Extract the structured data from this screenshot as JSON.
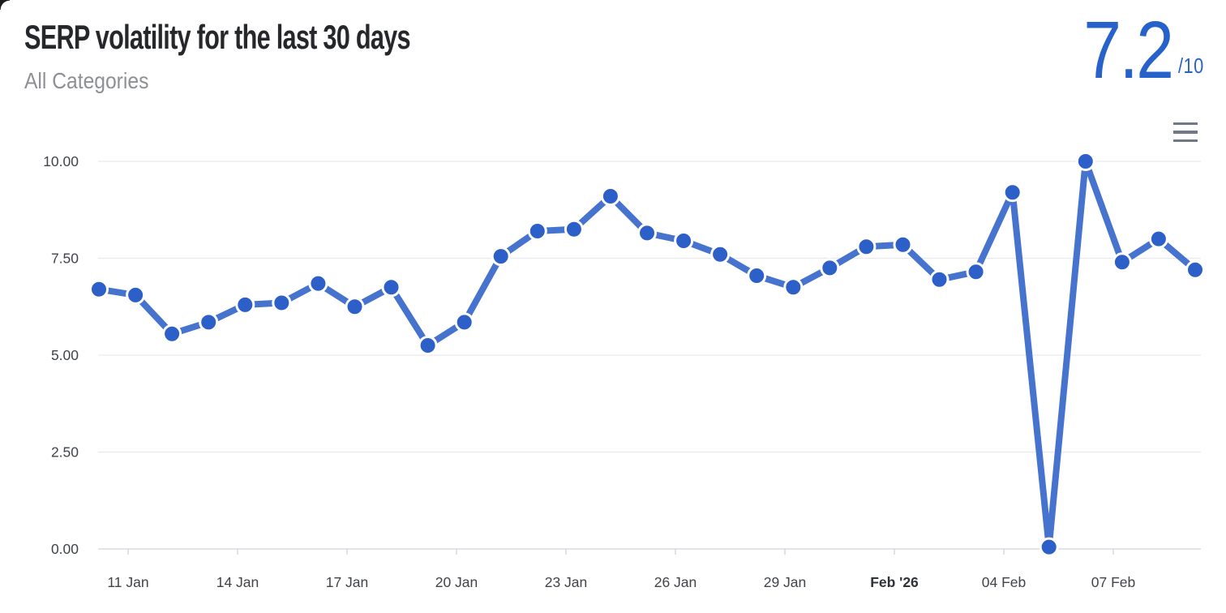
{
  "header": {
    "title": "SERP volatility for the last 30 days",
    "subtitle": "All Categories",
    "score_value": "7.2",
    "score_max": "/10"
  },
  "colors": {
    "score": "#2762ca",
    "title": "#26272a",
    "subtitle": "#8e9095",
    "line": "#4573cd",
    "marker": "#2c5fc8",
    "marker_border": "#ffffff",
    "grid": "#e8e9ec",
    "axis_line": "#d8dbdf",
    "tick_mark": "#ccd1d8",
    "axis_label": "#40444a",
    "axis_label_bold": "#2f3338",
    "menu_icon": "#6e7887"
  },
  "chart_data": {
    "type": "line",
    "title": "SERP volatility for the last 30 days",
    "subtitle": "All Categories",
    "current_score": 7.2,
    "score_scale_max": 10,
    "x": [
      "10 Jan",
      "11 Jan",
      "12 Jan",
      "13 Jan",
      "14 Jan",
      "15 Jan",
      "16 Jan",
      "17 Jan",
      "18 Jan",
      "19 Jan",
      "20 Jan",
      "21 Jan",
      "22 Jan",
      "23 Jan",
      "24 Jan",
      "25 Jan",
      "26 Jan",
      "27 Jan",
      "28 Jan",
      "29 Jan",
      "30 Jan",
      "31 Jan",
      "01 Feb",
      "02 Feb",
      "03 Feb",
      "04 Feb",
      "05 Feb",
      "06 Feb",
      "07 Feb",
      "08 Feb",
      "09 Feb"
    ],
    "values": [
      6.7,
      6.55,
      5.55,
      5.85,
      6.3,
      6.35,
      6.85,
      6.25,
      6.75,
      5.25,
      5.85,
      7.55,
      8.2,
      8.25,
      9.1,
      8.15,
      7.95,
      7.6,
      7.05,
      6.75,
      7.25,
      7.8,
      7.85,
      6.95,
      7.15,
      9.2,
      0.05,
      10.0,
      7.4,
      8.0,
      7.2
    ],
    "ylim": [
      0,
      10
    ],
    "y_ticks": [
      {
        "value": 10,
        "label": "10.00"
      },
      {
        "value": 7.5,
        "label": "7.50"
      },
      {
        "value": 5,
        "label": "5.00"
      },
      {
        "value": 2.5,
        "label": "2.50"
      },
      {
        "value": 0,
        "label": "0.00"
      }
    ],
    "x_ticks": [
      {
        "label": "11 Jan",
        "index": 1,
        "bold": false
      },
      {
        "label": "14 Jan",
        "index": 4,
        "bold": false
      },
      {
        "label": "17 Jan",
        "index": 7,
        "bold": false
      },
      {
        "label": "20 Jan",
        "index": 10,
        "bold": false
      },
      {
        "label": "23 Jan",
        "index": 13,
        "bold": false
      },
      {
        "label": "26 Jan",
        "index": 16,
        "bold": false
      },
      {
        "label": "29 Jan",
        "index": 19,
        "bold": false
      },
      {
        "label": "Feb '26",
        "index": 22,
        "bold": true
      },
      {
        "label": "04 Feb",
        "index": 25,
        "bold": false
      },
      {
        "label": "07 Feb",
        "index": 28,
        "bold": false
      }
    ],
    "grid": true,
    "legend": false,
    "marker_style": "circle"
  }
}
